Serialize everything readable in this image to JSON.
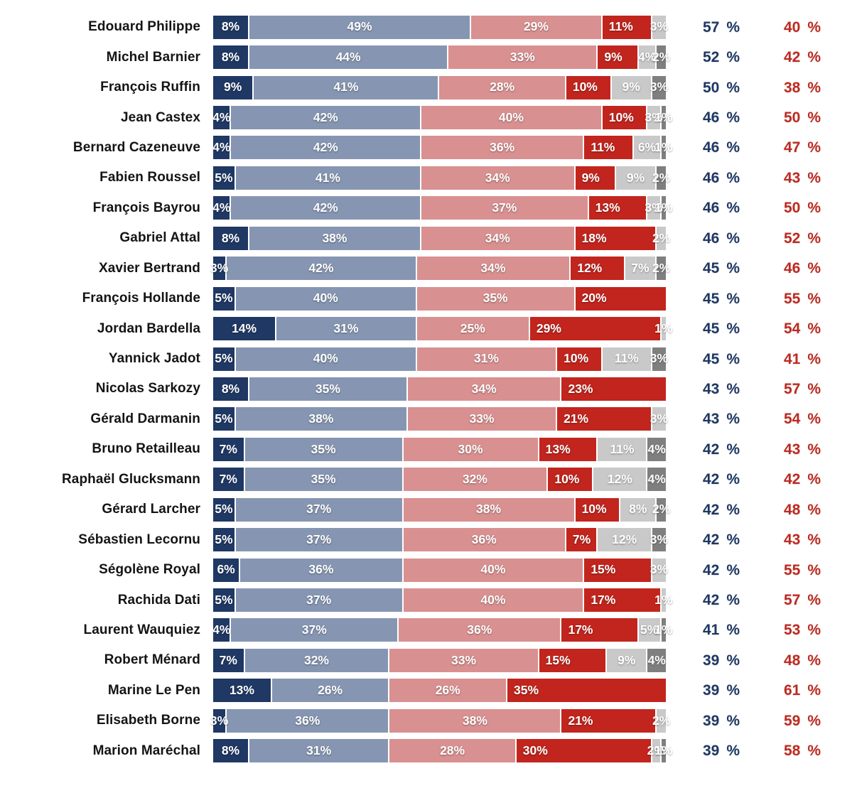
{
  "colors": {
    "dark_blue": "#1F3864",
    "steel_blue": "#8696B2",
    "light_red": "#D99090",
    "dark_red": "#C1251D",
    "light_gray": "#C9C9C9",
    "dark_gray": "#7F7F7F",
    "blue_total_text": "#1F3864",
    "red_total_text": "#BE2B21",
    "name_text": "#141414",
    "background": "#FFFFFF"
  },
  "chart_data": {
    "type": "bar",
    "stacked": true,
    "orientation": "horizontal",
    "axis_range": [
      0,
      100
    ],
    "grid": false,
    "legend": "none",
    "label_suffix": "%",
    "total_suffix": "%",
    "series_keys": [
      "dark_blue",
      "steel_blue",
      "light_red",
      "dark_red",
      "light_gray",
      "dark_gray"
    ],
    "rows": [
      {
        "name": "Edouard Philippe",
        "segments": [
          8,
          49,
          29,
          11,
          3,
          0
        ],
        "blue_total": 57,
        "red_total": 40
      },
      {
        "name": "Michel Barnier",
        "segments": [
          8,
          44,
          33,
          9,
          4,
          2
        ],
        "blue_total": 52,
        "red_total": 42
      },
      {
        "name": "François Ruffin",
        "segments": [
          9,
          41,
          28,
          10,
          9,
          3
        ],
        "blue_total": 50,
        "red_total": 38
      },
      {
        "name": "Jean Castex",
        "segments": [
          4,
          42,
          40,
          10,
          3,
          1
        ],
        "blue_total": 46,
        "red_total": 50
      },
      {
        "name": "Bernard Cazeneuve",
        "segments": [
          4,
          42,
          36,
          11,
          6,
          1
        ],
        "blue_total": 46,
        "red_total": 47
      },
      {
        "name": "Fabien Roussel",
        "segments": [
          5,
          41,
          34,
          9,
          9,
          2
        ],
        "blue_total": 46,
        "red_total": 43
      },
      {
        "name": "François Bayrou",
        "segments": [
          4,
          42,
          37,
          13,
          3,
          1
        ],
        "blue_total": 46,
        "red_total": 50
      },
      {
        "name": "Gabriel Attal",
        "segments": [
          8,
          38,
          34,
          18,
          2,
          0
        ],
        "blue_total": 46,
        "red_total": 52
      },
      {
        "name": "Xavier Bertrand",
        "segments": [
          3,
          42,
          34,
          12,
          7,
          2
        ],
        "blue_total": 45,
        "red_total": 46
      },
      {
        "name": "François Hollande",
        "segments": [
          5,
          40,
          35,
          20,
          0,
          0
        ],
        "blue_total": 45,
        "red_total": 55
      },
      {
        "name": "Jordan Bardella",
        "segments": [
          14,
          31,
          25,
          29,
          1,
          0
        ],
        "blue_total": 45,
        "red_total": 54
      },
      {
        "name": "Yannick Jadot",
        "segments": [
          5,
          40,
          31,
          10,
          11,
          3
        ],
        "blue_total": 45,
        "red_total": 41
      },
      {
        "name": "Nicolas Sarkozy",
        "segments": [
          8,
          35,
          34,
          23,
          0,
          0
        ],
        "blue_total": 43,
        "red_total": 57
      },
      {
        "name": "Gérald Darmanin",
        "segments": [
          5,
          38,
          33,
          21,
          3,
          0
        ],
        "blue_total": 43,
        "red_total": 54
      },
      {
        "name": "Bruno Retailleau",
        "segments": [
          7,
          35,
          30,
          13,
          11,
          4
        ],
        "blue_total": 42,
        "red_total": 43
      },
      {
        "name": "Raphaël Glucksmann",
        "segments": [
          7,
          35,
          32,
          10,
          12,
          4
        ],
        "blue_total": 42,
        "red_total": 42
      },
      {
        "name": "Gérard Larcher",
        "segments": [
          5,
          37,
          38,
          10,
          8,
          2
        ],
        "blue_total": 42,
        "red_total": 48
      },
      {
        "name": "Sébastien Lecornu",
        "segments": [
          5,
          37,
          36,
          7,
          12,
          3
        ],
        "blue_total": 42,
        "red_total": 43
      },
      {
        "name": "Ségolène Royal",
        "segments": [
          6,
          36,
          40,
          15,
          3,
          0
        ],
        "blue_total": 42,
        "red_total": 55
      },
      {
        "name": "Rachida Dati",
        "segments": [
          5,
          37,
          40,
          17,
          1,
          0
        ],
        "blue_total": 42,
        "red_total": 57
      },
      {
        "name": "Laurent Wauquiez",
        "segments": [
          4,
          37,
          36,
          17,
          5,
          1
        ],
        "blue_total": 41,
        "red_total": 53
      },
      {
        "name": "Robert Ménard",
        "segments": [
          7,
          32,
          33,
          15,
          9,
          4
        ],
        "blue_total": 39,
        "red_total": 48
      },
      {
        "name": "Marine Le Pen",
        "segments": [
          13,
          26,
          26,
          35,
          0,
          0
        ],
        "blue_total": 39,
        "red_total": 61
      },
      {
        "name": "Elisabeth Borne",
        "segments": [
          3,
          36,
          38,
          21,
          2,
          0
        ],
        "blue_total": 39,
        "red_total": 59
      },
      {
        "name": "Marion Maréchal",
        "segments": [
          8,
          31,
          28,
          30,
          2,
          1
        ],
        "blue_total": 39,
        "red_total": 58
      }
    ]
  }
}
